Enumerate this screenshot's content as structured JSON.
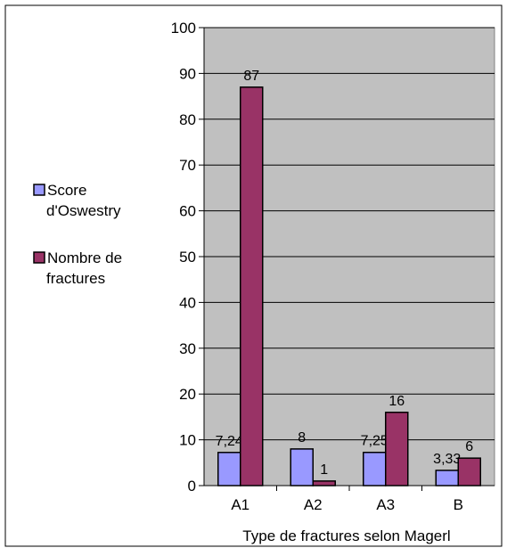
{
  "chart_data": {
    "type": "bar",
    "title": "",
    "xlabel": "Type de fractures selon Magerl",
    "ylabel": "",
    "categories": [
      "A1",
      "A2",
      "A3",
      "B"
    ],
    "ylim": [
      0,
      100
    ],
    "yticks": [
      "0",
      "10",
      "20",
      "30",
      "40",
      "50",
      "60",
      "70",
      "80",
      "90",
      "100"
    ],
    "grid": true,
    "legend_position": "left",
    "plot_background": "#c0c0c0",
    "series": [
      {
        "name": "Score d'Oswestry",
        "legend_lines": [
          "Score",
          "d'Oswestry"
        ],
        "color": "#9999ff",
        "values": [
          7.24,
          8,
          7.25,
          3.33
        ],
        "labels": [
          "7,24",
          "8",
          "7,25",
          "3,33"
        ]
      },
      {
        "name": "Nombre de fractures",
        "legend_lines": [
          "Nombre de",
          "fractures"
        ],
        "color": "#993366",
        "values": [
          87,
          1,
          16,
          6
        ],
        "labels": [
          "87",
          "1",
          "16",
          "6"
        ]
      }
    ]
  }
}
